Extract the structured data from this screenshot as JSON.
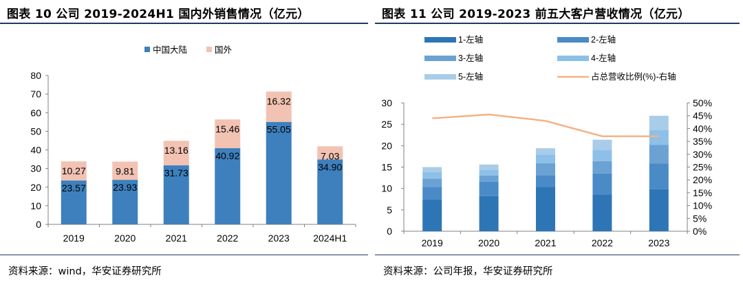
{
  "panels": [
    {
      "title": "图表 10 公司 2019-2024H1 国内外销售情况（亿元）",
      "source": "资料来源：wind，华安证券研究所"
    },
    {
      "title": "图表 11 公司 2019-2023 前五大客户营收情况（亿元）",
      "source": "资料来源：公司年报，华安证券研究所"
    }
  ],
  "chart_data": [
    {
      "type": "bar",
      "stacked": true,
      "categories": [
        "2019",
        "2020",
        "2021",
        "2022",
        "2023",
        "2024H1"
      ],
      "series": [
        {
          "name": "中国大陆",
          "values": [
            23.57,
            23.93,
            31.73,
            40.92,
            55.05,
            34.9
          ],
          "labels": [
            "23.57",
            "23.93",
            "31.73",
            "40.92",
            "55.05",
            "34.90"
          ],
          "color": "#3d80bd"
        },
        {
          "name": "国外",
          "values": [
            10.27,
            9.81,
            13.16,
            15.46,
            16.32,
            7.03
          ],
          "labels": [
            "10.27",
            "9.81",
            "13.16",
            "15.46",
            "16.32",
            "7.03"
          ],
          "color": "#f2c2b3"
        }
      ],
      "ylim": [
        0,
        80
      ],
      "yticks": [
        "0",
        "10",
        "20",
        "30",
        "40",
        "50",
        "60",
        "70",
        "80"
      ],
      "legend_position": "top",
      "grid": false
    },
    {
      "type": "bar",
      "stacked": true,
      "categories": [
        "2019",
        "2020",
        "2021",
        "2022",
        "2023"
      ],
      "series": [
        {
          "name": "1-左轴",
          "values": [
            7.5,
            8.2,
            10.4,
            8.6,
            9.8
          ],
          "color": "#2e75b6"
        },
        {
          "name": "2-左轴",
          "values": [
            2.9,
            3.4,
            2.7,
            4.9,
            6.0
          ],
          "color": "#4a8bc7"
        },
        {
          "name": "3-左轴",
          "values": [
            1.9,
            1.4,
            2.8,
            2.9,
            4.4
          ],
          "color": "#6ba2d3"
        },
        {
          "name": "4-左轴",
          "values": [
            1.5,
            1.4,
            2.0,
            2.6,
            3.5
          ],
          "color": "#8dc0e8"
        },
        {
          "name": "5-左轴",
          "values": [
            1.2,
            1.2,
            1.5,
            2.4,
            3.3
          ],
          "color": "#a9cde8"
        }
      ],
      "line_series": {
        "name": "占总营收比例(%)-右轴",
        "values": [
          44.0,
          45.5,
          43.0,
          37.0,
          37.0
        ],
        "color": "#f4b183"
      },
      "ylim": [
        0,
        30
      ],
      "yticks": [
        "0",
        "5",
        "10",
        "15",
        "20",
        "25",
        "30"
      ],
      "y2lim": [
        0,
        50
      ],
      "y2ticks": [
        "0%",
        "5%",
        "10%",
        "15%",
        "20%",
        "25%",
        "30%",
        "35%",
        "40%",
        "45%",
        "50%"
      ],
      "legend_position": "top",
      "grid": false
    }
  ]
}
